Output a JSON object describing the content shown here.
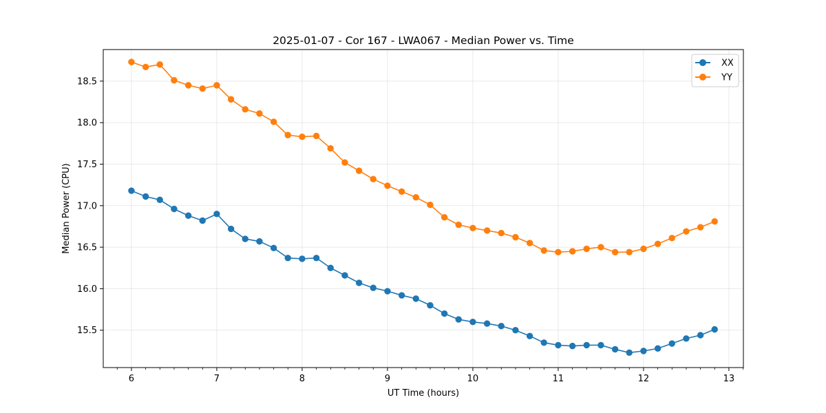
{
  "chart_data": {
    "type": "line",
    "title": "2025-01-07 - Cor 167 - LWA067 - Median Power vs. Time",
    "xlabel": "UT Time (hours)",
    "ylabel": "Median Power (CPU)",
    "xlim": [
      5.67,
      13.17
    ],
    "ylim": [
      15.05,
      18.88
    ],
    "grid": true,
    "legend_position": "top-right",
    "x_ticks": [
      6,
      7,
      8,
      9,
      10,
      11,
      12,
      13
    ],
    "x_tick_labels": [
      "6",
      "7",
      "8",
      "9",
      "10",
      "11",
      "12",
      "13"
    ],
    "y_ticks": [
      15.5,
      16.0,
      16.5,
      17.0,
      17.5,
      18.0,
      18.5
    ],
    "y_tick_labels": [
      "15.5",
      "16.0",
      "16.5",
      "17.0",
      "17.5",
      "18.0",
      "18.5"
    ],
    "x": [
      6.0,
      6.167,
      6.333,
      6.5,
      6.667,
      6.833,
      7.0,
      7.167,
      7.333,
      7.5,
      7.667,
      7.833,
      8.0,
      8.167,
      8.333,
      8.5,
      8.667,
      8.833,
      9.0,
      9.167,
      9.333,
      9.5,
      9.667,
      9.833,
      10.0,
      10.167,
      10.333,
      10.5,
      10.667,
      10.833,
      11.0,
      11.167,
      11.333,
      11.5,
      11.667,
      11.833,
      12.0,
      12.167,
      12.333,
      12.5,
      12.667,
      12.833
    ],
    "series": [
      {
        "name": "XX",
        "color": "#1f77b4",
        "values": [
          17.18,
          17.11,
          17.07,
          16.96,
          16.88,
          16.82,
          16.9,
          16.72,
          16.6,
          16.57,
          16.49,
          16.37,
          16.36,
          16.37,
          16.25,
          16.16,
          16.07,
          16.01,
          15.97,
          15.92,
          15.88,
          15.8,
          15.7,
          15.63,
          15.6,
          15.58,
          15.55,
          15.5,
          15.43,
          15.35,
          15.32,
          15.31,
          15.32,
          15.32,
          15.27,
          15.23,
          15.25,
          15.28,
          15.34,
          15.4,
          15.44,
          15.51
        ]
      },
      {
        "name": "YY",
        "color": "#ff7f0e",
        "values": [
          18.73,
          18.67,
          18.7,
          18.51,
          18.45,
          18.41,
          18.45,
          18.28,
          18.16,
          18.11,
          18.01,
          17.85,
          17.83,
          17.84,
          17.69,
          17.52,
          17.42,
          17.32,
          17.24,
          17.17,
          17.1,
          17.01,
          16.86,
          16.77,
          16.73,
          16.7,
          16.67,
          16.62,
          16.55,
          16.46,
          16.44,
          16.45,
          16.48,
          16.5,
          16.44,
          16.44,
          16.48,
          16.54,
          16.61,
          16.69,
          16.74,
          16.81
        ]
      }
    ]
  }
}
